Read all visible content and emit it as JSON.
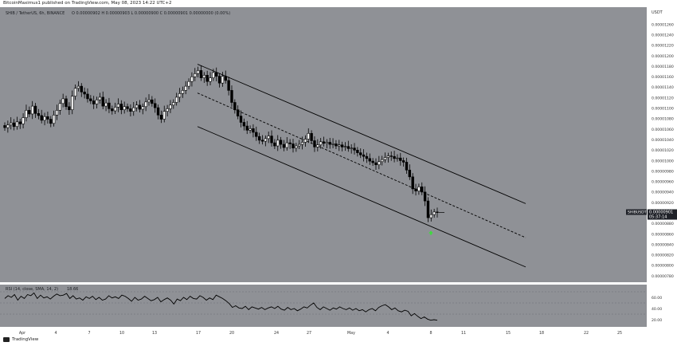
{
  "header": {
    "credit": "BitcoinMaximus1 published on TradingView.com, May 08, 2023 14:22 UTC+2",
    "symbol_line": "SHIB / TetherUS, 6h, BINANCE",
    "ohlc": "O 0.00000902  H 0.00000903  L 0.00000900  C 0.00000901  0.00000000 (0.00%)"
  },
  "price_axis": {
    "currency": "USDT",
    "current_symbol": "SHIBUSDT",
    "current_price": "0.00000901",
    "countdown": "05:37:14"
  },
  "rsi": {
    "label": "RSI (14, close, SMA, 14, 2)",
    "value": "18.66"
  },
  "footer": {
    "logo_text": "TradingView"
  },
  "colors": {
    "background": "#8f9196",
    "candle": "#000000",
    "price_tag": "#1f2128",
    "arrow": "#3ddc3d",
    "axis_bg": "#ffffff"
  },
  "chart_data": {
    "type": "candlestick",
    "title": "SHIB / TetherUS, 6h, BINANCE",
    "ylabel": "USDT",
    "ylim": [
      7.74e-06,
      1.27e-05
    ],
    "y_ticks": [
      "0.00001260",
      "0.00001240",
      "0.00001220",
      "0.00001200",
      "0.00001180",
      "0.00001160",
      "0.00001140",
      "0.00001120",
      "0.00001100",
      "0.00001080",
      "0.00001060",
      "0.00001040",
      "0.00001020",
      "0.00001000",
      "0.00000980",
      "0.00000960",
      "0.00000940",
      "0.00000920",
      "0.00000900",
      "0.00000880",
      "0.00000860",
      "0.00000840",
      "0.00000820",
      "0.00000800",
      "0.00000780"
    ],
    "x_ticks": [
      "Apr",
      "4",
      "7",
      "10",
      "13",
      "17",
      "20",
      "24",
      "27",
      "May",
      "4",
      "8",
      "11",
      "15",
      "18",
      "22",
      "25"
    ],
    "channel": {
      "upper": [
        [
          0,
          1.184e-05
        ],
        [
          1,
          9.18e-06
        ]
      ],
      "middle": [
        [
          0,
          1.129e-05
        ],
        [
          1,
          8.53e-06
        ]
      ],
      "lower": [
        [
          0,
          1.065e-05
        ],
        [
          1,
          7.97e-06
        ]
      ]
    },
    "closes": [
      1.063,
      1.068,
      1.072,
      1.065,
      1.074,
      1.07,
      1.082,
      1.096,
      1.089,
      1.104,
      1.09,
      1.086,
      1.077,
      1.084,
      1.079,
      1.071,
      1.087,
      1.096,
      1.109,
      1.118,
      1.103,
      1.097,
      1.123,
      1.138,
      1.142,
      1.131,
      1.127,
      1.118,
      1.114,
      1.108,
      1.116,
      1.121,
      1.104,
      1.11,
      1.099,
      1.095,
      1.102,
      1.108,
      1.097,
      1.103,
      1.099,
      1.094,
      1.101,
      1.106,
      1.098,
      1.103,
      1.112,
      1.116,
      1.109,
      1.101,
      1.087,
      1.079,
      1.094,
      1.099,
      1.106,
      1.111,
      1.121,
      1.128,
      1.134,
      1.142,
      1.151,
      1.16,
      1.166,
      1.172,
      1.158,
      1.163,
      1.151,
      1.158,
      1.168,
      1.161,
      1.148,
      1.161,
      1.153,
      1.134,
      1.111,
      1.097,
      1.085,
      1.073,
      1.066,
      1.058,
      1.061,
      1.054,
      1.046,
      1.039,
      1.037,
      1.042,
      1.047,
      1.034,
      1.028,
      1.039,
      1.031,
      1.025,
      1.034,
      1.032,
      1.024,
      1.028,
      1.031,
      1.035,
      1.041,
      1.052,
      1.038,
      1.026,
      1.03,
      1.036,
      1.033,
      1.035,
      1.031,
      1.032,
      1.028,
      1.03,
      1.026,
      1.027,
      1.023,
      1.024,
      1.02,
      1.015,
      1.011,
      1.008,
      1.004,
      0.999,
      0.996,
      0.992,
      0.998,
      1.002,
      1.006,
      1.009,
      1.008,
      1.004,
      1.005,
      1.0,
      0.997,
      0.982,
      0.969,
      0.946,
      0.942,
      0.95,
      0.94,
      0.923,
      0.891,
      0.897,
      0.902,
      0.901
    ],
    "rsi": {
      "ylim": [
        10,
        80
      ],
      "y_ticks": [
        "60.00",
        "40.00",
        "20.00"
      ],
      "levels": [
        70,
        50,
        30
      ],
      "values": [
        58,
        63,
        60,
        65,
        55,
        62,
        58,
        65,
        63,
        68,
        58,
        64,
        59,
        61,
        57,
        62,
        66,
        63,
        64,
        67,
        58,
        63,
        57,
        59,
        55,
        61,
        58,
        62,
        56,
        60,
        55,
        57,
        63,
        59,
        61,
        58,
        64,
        62,
        58,
        53,
        60,
        55,
        57,
        62,
        58,
        54,
        56,
        60,
        52,
        56,
        59,
        55,
        48,
        57,
        54,
        60,
        56,
        62,
        58,
        57,
        63,
        60,
        55,
        59,
        56,
        64,
        61,
        58,
        54,
        49,
        42,
        45,
        41,
        40,
        44,
        38,
        43,
        41,
        39,
        42,
        38,
        41,
        43,
        40,
        44,
        39,
        37,
        42,
        38,
        40,
        36,
        39,
        43,
        41,
        46,
        50,
        42,
        38,
        43,
        40,
        37,
        41,
        39,
        43,
        40,
        38,
        41,
        37,
        40,
        36,
        38,
        34,
        38,
        40,
        36,
        42,
        45,
        47,
        43,
        38,
        41,
        36,
        34,
        37,
        35,
        27,
        31,
        26,
        22,
        25,
        21,
        19,
        20,
        19
      ]
    }
  }
}
